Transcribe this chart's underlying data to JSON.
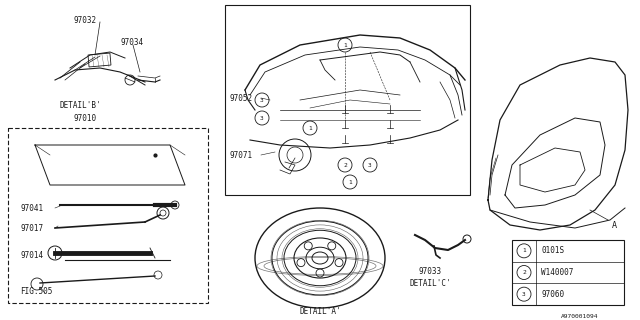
{
  "bg_color": "#ffffff",
  "line_color": "#1a1a1a",
  "fig_width": 6.4,
  "fig_height": 3.2,
  "dpi": 100,
  "legend_items": [
    {
      "num": "1",
      "code": "0101S"
    },
    {
      "num": "2",
      "code": "W140007"
    },
    {
      "num": "3",
      "code": "97060"
    }
  ],
  "font_size": 5.0,
  "font_family": "monospace"
}
